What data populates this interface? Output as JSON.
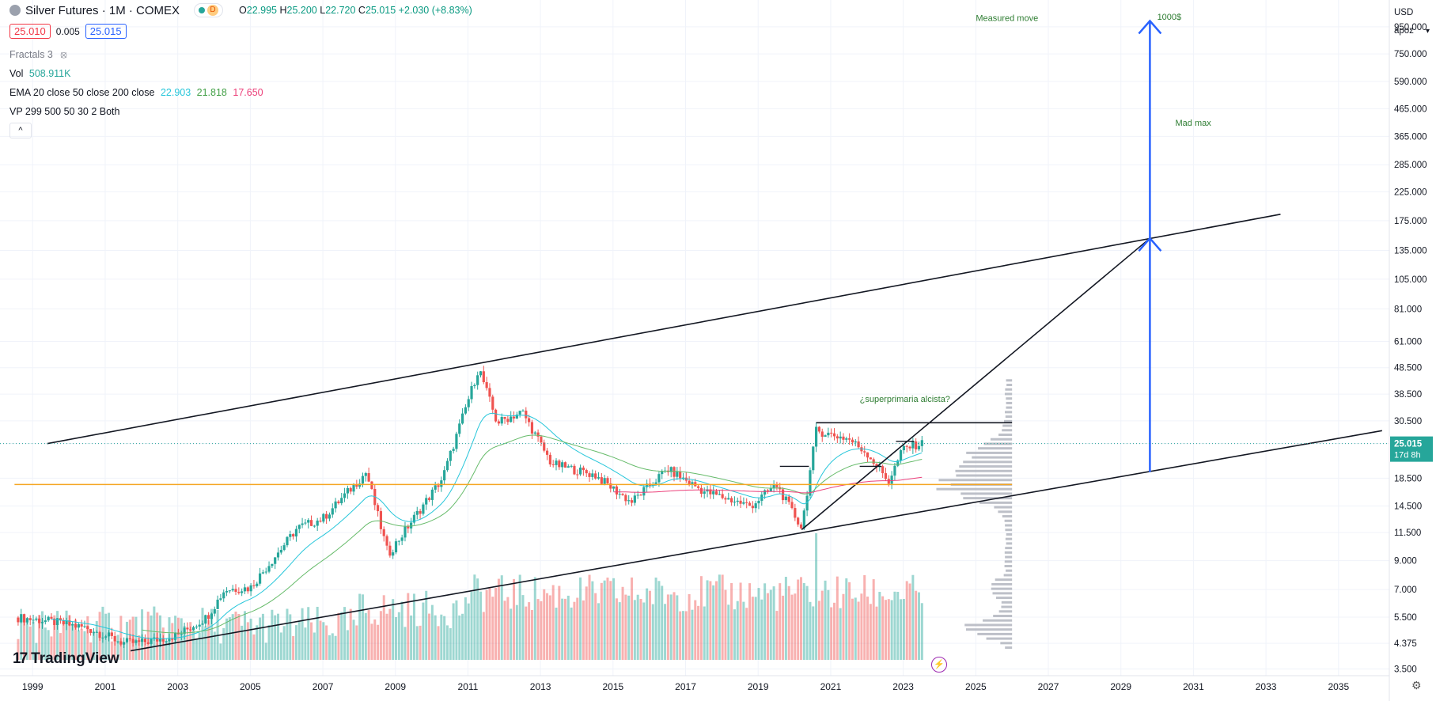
{
  "header": {
    "symbol_title": "Silver Futures · 1M · COMEX",
    "badge_letter": "D",
    "ohlc": {
      "o_label": "O",
      "o": "22.995",
      "h_label": "H",
      "h": "25.200",
      "l_label": "L",
      "l": "22.720",
      "c_label": "C",
      "c": "25.015",
      "change": "+2.030 (+8.83%)"
    },
    "bid": "25.010",
    "spread": "0.005",
    "ask": "25.015"
  },
  "indicators": {
    "fractals": "Fractals 3",
    "vol_label": "Vol",
    "vol_value": "508.911K",
    "ema_label": "EMA 20 close 50 close 200 close",
    "ema20": "22.903",
    "ema50": "21.818",
    "ema200": "17.650",
    "vp_label": "VP 299 500 50 30 2 Both",
    "collapse_glyph": "^"
  },
  "scale": {
    "currency": "USD",
    "mode": "apoz",
    "last_price": "25.015",
    "countdown": "17d 8h"
  },
  "branding": {
    "logo_text": "TradingView",
    "logo_mark": "17"
  },
  "colors": {
    "up": "#26a69a",
    "down": "#ef5350",
    "ema20": "#26c6da",
    "ema50": "#66bb6a",
    "ema200": "#ec407a",
    "support_line": "#f5a623",
    "arrow": "#2962ff",
    "annotation_text": "#2e7d32",
    "profile": "#b2b5be"
  },
  "chart_data": {
    "type": "line",
    "series_kind": "candlestick (monthly)",
    "x_axis": {
      "ticks": [
        "1999",
        "2001",
        "2003",
        "2005",
        "2007",
        "2009",
        "2011",
        "2013",
        "2015",
        "2017",
        "2019",
        "2021",
        "2023",
        "2025",
        "2027",
        "2029",
        "2031",
        "2033",
        "2035"
      ]
    },
    "y_axis": {
      "scale": "log",
      "ticks": [
        "950.000",
        "750.000",
        "590.000",
        "465.000",
        "365.000",
        "285.000",
        "225.000",
        "175.000",
        "135.000",
        "105.000",
        "81.000",
        "61.000",
        "48.500",
        "38.500",
        "30.500",
        "25.015",
        "18.500",
        "14.500",
        "11.500",
        "9.000",
        "7.000",
        "5.500",
        "4.375",
        "3.500"
      ]
    },
    "price_path": [
      {
        "x": 1998.5,
        "y": 5.5
      },
      {
        "x": 1999.5,
        "y": 5.3
      },
      {
        "x": 2000.5,
        "y": 5.0
      },
      {
        "x": 2001.5,
        "y": 4.4
      },
      {
        "x": 2002.0,
        "y": 4.4
      },
      {
        "x": 2003.0,
        "y": 4.7
      },
      {
        "x": 2003.8,
        "y": 5.5
      },
      {
        "x": 2004.3,
        "y": 7.0
      },
      {
        "x": 2005.0,
        "y": 7.1
      },
      {
        "x": 2006.3,
        "y": 12.0
      },
      {
        "x": 2007.0,
        "y": 13.0
      },
      {
        "x": 2008.2,
        "y": 19.5
      },
      {
        "x": 2008.8,
        "y": 9.5
      },
      {
        "x": 2009.5,
        "y": 13.0
      },
      {
        "x": 2010.3,
        "y": 18.5
      },
      {
        "x": 2011.3,
        "y": 48.5
      },
      {
        "x": 2011.8,
        "y": 30.0
      },
      {
        "x": 2012.5,
        "y": 33.0
      },
      {
        "x": 2013.3,
        "y": 21.0
      },
      {
        "x": 2014.5,
        "y": 19.0
      },
      {
        "x": 2015.5,
        "y": 15.0
      },
      {
        "x": 2016.5,
        "y": 20.0
      },
      {
        "x": 2017.5,
        "y": 16.5
      },
      {
        "x": 2018.8,
        "y": 14.5
      },
      {
        "x": 2019.5,
        "y": 17.5
      },
      {
        "x": 2020.2,
        "y": 12.0
      },
      {
        "x": 2020.6,
        "y": 28.0
      },
      {
        "x": 2021.5,
        "y": 26.0
      },
      {
        "x": 2022.0,
        "y": 23.0
      },
      {
        "x": 2022.6,
        "y": 18.0
      },
      {
        "x": 2023.0,
        "y": 24.0
      },
      {
        "x": 2023.5,
        "y": 25.015
      }
    ],
    "ema_values": {
      "ema20": 22.903,
      "ema50": 21.818,
      "ema200": 17.65
    },
    "trendlines": [
      {
        "role": "upper-channel",
        "from": {
          "x": 1999.4,
          "y": 25.0
        },
        "to": {
          "x": 2033.4,
          "y": 185.0
        }
      },
      {
        "role": "lower-channel",
        "from": {
          "x": 2001.7,
          "y": 4.1
        },
        "to": {
          "x": 2036.2,
          "y": 28.0
        }
      },
      {
        "role": "breakout",
        "from": {
          "x": 2020.2,
          "y": 11.8
        },
        "to": {
          "x": 2029.8,
          "y": 150.0
        }
      },
      {
        "role": "resistance",
        "from": {
          "x": 2020.6,
          "y": 30.0
        },
        "to": {
          "x": 2026.0,
          "y": 30.0
        }
      },
      {
        "role": "support",
        "from": {
          "x": 1998.5,
          "y": 17.5
        },
        "to": {
          "x": 2026.0,
          "y": 17.5
        }
      }
    ],
    "arrows": [
      {
        "x": 2029.8,
        "from_y": 19.5,
        "to_y": 150.0
      },
      {
        "x": 2029.8,
        "from_y": 150.0,
        "to_y": 1000.0
      }
    ],
    "annotations": [
      {
        "text": "Measured move",
        "x": 2025.0,
        "y": 1000.0
      },
      {
        "text": "1000$",
        "x": 2030.0,
        "y": 1010.0
      },
      {
        "text": "Mad max",
        "x": 2030.5,
        "y": 400.0
      },
      {
        "text": "¿superprimaria alcista?",
        "x": 2021.8,
        "y": 36.0
      }
    ],
    "ylim": [
      3.3,
      1200
    ],
    "xlim": [
      1998.1,
      2036.4
    ],
    "grid": true
  }
}
